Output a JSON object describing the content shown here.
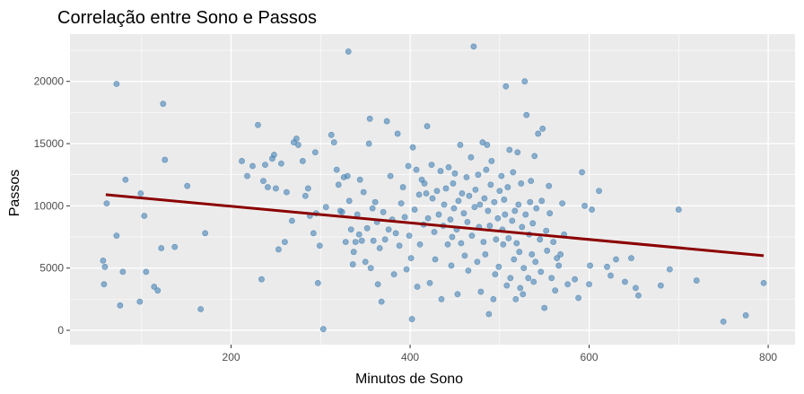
{
  "chart_data": {
    "type": "scatter",
    "title": "Correlação entre Sono e Passos",
    "xlabel": "Minutos de Sono",
    "ylabel": "Passos",
    "xlim": [
      20,
      830
    ],
    "ylim": [
      -1150,
      23800
    ],
    "x_ticks": [
      200,
      400,
      600,
      800
    ],
    "y_ticks": [
      0,
      5000,
      10000,
      15000,
      20000
    ],
    "grid": true,
    "point_color": "#4682b4",
    "trend_color": "#8b0000",
    "panel_color": "#ebebeb",
    "trend_line": {
      "x": [
        60,
        795
      ],
      "y": [
        10900,
        6000
      ]
    },
    "points": [
      [
        57,
        5600
      ],
      [
        58,
        3700
      ],
      [
        59,
        5100
      ],
      [
        61,
        10200
      ],
      [
        72,
        19800
      ],
      [
        72,
        7600
      ],
      [
        76,
        2000
      ],
      [
        79,
        4700
      ],
      [
        82,
        12100
      ],
      [
        98,
        2300
      ],
      [
        99,
        11000
      ],
      [
        103,
        9200
      ],
      [
        105,
        4700
      ],
      [
        114,
        3500
      ],
      [
        118,
        3200
      ],
      [
        122,
        6600
      ],
      [
        124,
        18200
      ],
      [
        126,
        13700
      ],
      [
        137,
        6700
      ],
      [
        151,
        11600
      ],
      [
        166,
        1700
      ],
      [
        171,
        7800
      ],
      [
        212,
        13600
      ],
      [
        218,
        12400
      ],
      [
        224,
        13200
      ],
      [
        230,
        16500
      ],
      [
        234,
        4100
      ],
      [
        236,
        12000
      ],
      [
        238,
        13300
      ],
      [
        241,
        11500
      ],
      [
        246,
        13800
      ],
      [
        248,
        14100
      ],
      [
        250,
        11400
      ],
      [
        253,
        6500
      ],
      [
        256,
        13400
      ],
      [
        260,
        7100
      ],
      [
        262,
        11100
      ],
      [
        268,
        8800
      ],
      [
        270,
        15100
      ],
      [
        273,
        15400
      ],
      [
        275,
        14900
      ],
      [
        280,
        13600
      ],
      [
        283,
        10800
      ],
      [
        286,
        11400
      ],
      [
        288,
        9200
      ],
      [
        292,
        7800
      ],
      [
        294,
        14300
      ],
      [
        295,
        9400
      ],
      [
        297,
        3800
      ],
      [
        299,
        6800
      ],
      [
        303,
        100
      ],
      [
        306,
        9900
      ],
      [
        312,
        15700
      ],
      [
        315,
        15100
      ],
      [
        318,
        12900
      ],
      [
        320,
        11700
      ],
      [
        322,
        9600
      ],
      [
        324,
        9500
      ],
      [
        326,
        12300
      ],
      [
        328,
        7100
      ],
      [
        330,
        12400
      ],
      [
        331,
        22400
      ],
      [
        332,
        10400
      ],
      [
        334,
        8100
      ],
      [
        336,
        5300
      ],
      [
        337,
        6300
      ],
      [
        339,
        7100
      ],
      [
        341,
        9300
      ],
      [
        343,
        7700
      ],
      [
        344,
        12100
      ],
      [
        346,
        7200
      ],
      [
        348,
        11100
      ],
      [
        350,
        5500
      ],
      [
        352,
        8200
      ],
      [
        354,
        15000
      ],
      [
        355,
        17000
      ],
      [
        356,
        5000
      ],
      [
        358,
        9800
      ],
      [
        359,
        7200
      ],
      [
        361,
        10300
      ],
      [
        363,
        8700
      ],
      [
        364,
        3700
      ],
      [
        366,
        6600
      ],
      [
        368,
        2300
      ],
      [
        370,
        9500
      ],
      [
        372,
        7300
      ],
      [
        374,
        16800
      ],
      [
        376,
        8100
      ],
      [
        378,
        12400
      ],
      [
        380,
        8900
      ],
      [
        382,
        4500
      ],
      [
        384,
        7800
      ],
      [
        386,
        15800
      ],
      [
        388,
        6800
      ],
      [
        390,
        10200
      ],
      [
        392,
        11500
      ],
      [
        394,
        9100
      ],
      [
        396,
        4900
      ],
      [
        398,
        13200
      ],
      [
        399,
        7600
      ],
      [
        401,
        5800
      ],
      [
        402,
        900
      ],
      [
        403,
        14700
      ],
      [
        405,
        9700
      ],
      [
        407,
        12900
      ],
      [
        408,
        3500
      ],
      [
        410,
        10900
      ],
      [
        411,
        6900
      ],
      [
        413,
        12100
      ],
      [
        415,
        8500
      ],
      [
        416,
        11800
      ],
      [
        418,
        11000
      ],
      [
        419,
        16400
      ],
      [
        420,
        9000
      ],
      [
        422,
        3800
      ],
      [
        424,
        13300
      ],
      [
        425,
        10600
      ],
      [
        427,
        7900
      ],
      [
        428,
        5700
      ],
      [
        430,
        11200
      ],
      [
        432,
        9300
      ],
      [
        434,
        12800
      ],
      [
        435,
        2500
      ],
      [
        437,
        8400
      ],
      [
        438,
        10100
      ],
      [
        440,
        11400
      ],
      [
        442,
        6900
      ],
      [
        443,
        13100
      ],
      [
        445,
        8900
      ],
      [
        446,
        5200
      ],
      [
        447,
        7500
      ],
      [
        448,
        11800
      ],
      [
        449,
        9800
      ],
      [
        450,
        12600
      ],
      [
        452,
        8100
      ],
      [
        453,
        2900
      ],
      [
        454,
        10400
      ],
      [
        456,
        14900
      ],
      [
        457,
        7000
      ],
      [
        458,
        11000
      ],
      [
        460,
        9400
      ],
      [
        461,
        6000
      ],
      [
        463,
        12300
      ],
      [
        464,
        8700
      ],
      [
        465,
        4800
      ],
      [
        466,
        10800
      ],
      [
        468,
        13900
      ],
      [
        469,
        7600
      ],
      [
        471,
        22800
      ],
      [
        472,
        9900
      ],
      [
        473,
        11300
      ],
      [
        475,
        5500
      ],
      [
        476,
        12500
      ],
      [
        477,
        8300
      ],
      [
        478,
        10100
      ],
      [
        479,
        3100
      ],
      [
        481,
        15100
      ],
      [
        482,
        7100
      ],
      [
        483,
        10600
      ],
      [
        484,
        6100
      ],
      [
        485,
        12900
      ],
      [
        486,
        14900
      ],
      [
        487,
        9600
      ],
      [
        488,
        1300
      ],
      [
        489,
        8400
      ],
      [
        490,
        11700
      ],
      [
        491,
        13600
      ],
      [
        493,
        2500
      ],
      [
        494,
        10300
      ],
      [
        495,
        4500
      ],
      [
        496,
        7300
      ],
      [
        498,
        9000
      ],
      [
        499,
        5100
      ],
      [
        500,
        11200
      ],
      [
        502,
        12400
      ],
      [
        503,
        8100
      ],
      [
        504,
        6900
      ],
      [
        505,
        10500
      ],
      [
        506,
        9300
      ],
      [
        507,
        19600
      ],
      [
        508,
        3600
      ],
      [
        509,
        11500
      ],
      [
        510,
        7400
      ],
      [
        511,
        14500
      ],
      [
        512,
        4200
      ],
      [
        514,
        8800
      ],
      [
        515,
        12700
      ],
      [
        516,
        5700
      ],
      [
        517,
        9600
      ],
      [
        518,
        2500
      ],
      [
        519,
        7000
      ],
      [
        520,
        14300
      ],
      [
        521,
        10100
      ],
      [
        522,
        6300
      ],
      [
        523,
        3400
      ],
      [
        524,
        11800
      ],
      [
        525,
        8300
      ],
      [
        526,
        2900
      ],
      [
        527,
        5000
      ],
      [
        528,
        20000
      ],
      [
        529,
        9300
      ],
      [
        530,
        17300
      ],
      [
        532,
        4200
      ],
      [
        533,
        7700
      ],
      [
        534,
        10300
      ],
      [
        535,
        12000
      ],
      [
        536,
        6100
      ],
      [
        537,
        8600
      ],
      [
        538,
        3900
      ],
      [
        539,
        14000
      ],
      [
        540,
        5500
      ],
      [
        541,
        9800
      ],
      [
        543,
        15800
      ],
      [
        545,
        7300
      ],
      [
        546,
        4700
      ],
      [
        547,
        10400
      ],
      [
        548,
        16200
      ],
      [
        550,
        1800
      ],
      [
        552,
        8000
      ],
      [
        553,
        6400
      ],
      [
        555,
        11600
      ],
      [
        556,
        9400
      ],
      [
        558,
        4200
      ],
      [
        560,
        7100
      ],
      [
        562,
        3200
      ],
      [
        564,
        5800
      ],
      [
        566,
        5200
      ],
      [
        568,
        6100
      ],
      [
        570,
        10200
      ],
      [
        572,
        7700
      ],
      [
        576,
        3700
      ],
      [
        584,
        4100
      ],
      [
        588,
        2600
      ],
      [
        592,
        12700
      ],
      [
        595,
        10000
      ],
      [
        600,
        3700
      ],
      [
        601,
        5200
      ],
      [
        603,
        9700
      ],
      [
        611,
        11200
      ],
      [
        620,
        5100
      ],
      [
        624,
        4400
      ],
      [
        630,
        5700
      ],
      [
        640,
        3900
      ],
      [
        647,
        5800
      ],
      [
        652,
        3400
      ],
      [
        655,
        2800
      ],
      [
        680,
        3600
      ],
      [
        690,
        4900
      ],
      [
        700,
        9700
      ],
      [
        720,
        4000
      ],
      [
        750,
        700
      ],
      [
        775,
        1200
      ],
      [
        795,
        3800
      ]
    ]
  }
}
